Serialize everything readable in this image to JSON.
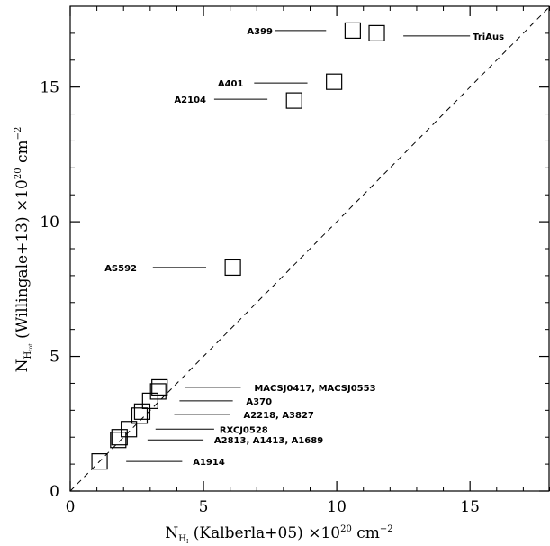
{
  "chart_data": {
    "type": "scatter",
    "title": "",
    "xlabel": {
      "main": "N",
      "sub": "H",
      "subsub": "I",
      "rest": " (Kalberla+05) ×10",
      "sup": "20",
      "unit": " cm",
      "unit_sup": "−2"
    },
    "ylabel": {
      "main": "N",
      "sub": "H",
      "subsub": "tot",
      "rest": " (Willingale+13) ×10",
      "sup": "20",
      "unit": " cm",
      "unit_sup": "−2"
    },
    "xlim": [
      0,
      18
    ],
    "ylim": [
      0,
      18
    ],
    "x_ticks": [
      0,
      5,
      10,
      15
    ],
    "y_ticks": [
      0,
      5,
      10,
      15
    ],
    "x_tick_labels": [
      "0",
      "5",
      "10",
      "15"
    ],
    "y_tick_labels": [
      "0",
      "5",
      "10",
      "15"
    ],
    "minor_tick_step": 1,
    "grid": false,
    "legend": "none",
    "reference_line": {
      "style": "dashed",
      "x": [
        0,
        18
      ],
      "y": [
        0,
        18
      ]
    },
    "marker": "open-square",
    "points": [
      {
        "x": 1.1,
        "y": 1.1
      },
      {
        "x": 1.8,
        "y": 1.9
      },
      {
        "x": 1.85,
        "y": 2.0
      },
      {
        "x": 2.2,
        "y": 2.3
      },
      {
        "x": 2.6,
        "y": 2.8
      },
      {
        "x": 2.7,
        "y": 2.95
      },
      {
        "x": 3.0,
        "y": 3.35
      },
      {
        "x": 3.3,
        "y": 3.7
      },
      {
        "x": 3.35,
        "y": 3.85
      },
      {
        "x": 6.1,
        "y": 8.3
      },
      {
        "x": 8.4,
        "y": 14.5
      },
      {
        "x": 9.9,
        "y": 15.2
      },
      {
        "x": 10.6,
        "y": 17.1
      },
      {
        "x": 11.5,
        "y": 17.0
      }
    ],
    "annotations": [
      {
        "text": "A399",
        "x": 7.6,
        "y": 17.1,
        "anchor": "end",
        "line": [
          7.7,
          9.6
        ]
      },
      {
        "text": "TriAus",
        "x": 15.1,
        "y": 16.9,
        "anchor": "start",
        "line": [
          12.5,
          15.0
        ]
      },
      {
        "text": "A401",
        "x": 6.5,
        "y": 15.15,
        "anchor": "end",
        "line": [
          6.9,
          8.9
        ]
      },
      {
        "text": "A2104",
        "x": 5.1,
        "y": 14.55,
        "anchor": "end",
        "line": [
          5.4,
          7.4
        ]
      },
      {
        "text": "AS592",
        "x": 2.5,
        "y": 8.3,
        "anchor": "end",
        "line": [
          3.1,
          5.1
        ]
      },
      {
        "text": "MACSJ0417, MACSJ0553",
        "x": 6.9,
        "y": 3.85,
        "anchor": "start",
        "line": [
          4.3,
          6.4
        ]
      },
      {
        "text": "A370",
        "x": 6.6,
        "y": 3.35,
        "anchor": "start",
        "line": [
          4.1,
          6.1
        ]
      },
      {
        "text": "A2218, A3827",
        "x": 6.5,
        "y": 2.85,
        "anchor": "start",
        "line": [
          3.9,
          6.0
        ]
      },
      {
        "text": "RXCJ0528",
        "x": 5.6,
        "y": 2.3,
        "anchor": "start",
        "line": [
          3.2,
          5.4
        ]
      },
      {
        "text": "A2813, A1413, A1689",
        "x": 5.4,
        "y": 1.9,
        "anchor": "start",
        "line": [
          2.9,
          5.0
        ]
      },
      {
        "text": "A1914",
        "x": 4.6,
        "y": 1.1,
        "anchor": "start",
        "line": [
          2.1,
          4.2
        ]
      }
    ]
  }
}
